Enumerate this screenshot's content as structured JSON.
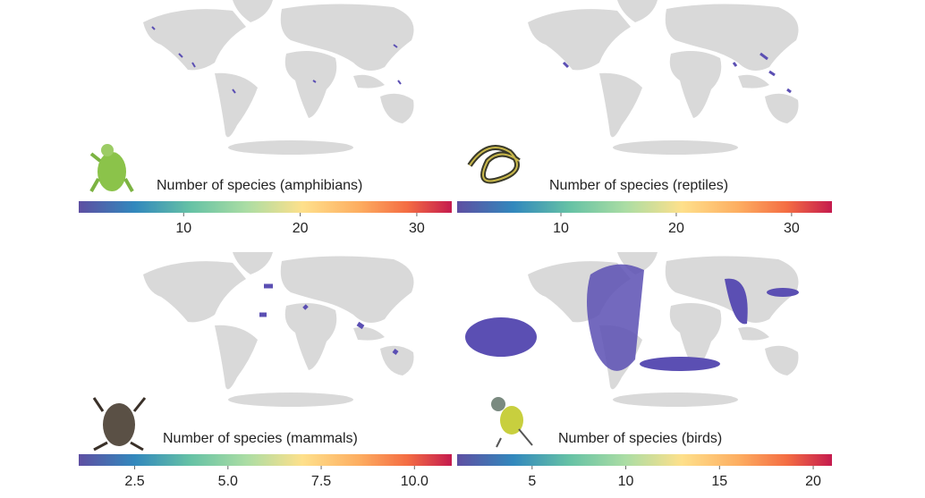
{
  "panels": [
    {
      "label": "Number of species (amphibians)",
      "clim": [
        1,
        33
      ],
      "ticks": [
        10,
        20,
        30
      ]
    },
    {
      "label": "Number of species (reptiles)",
      "clim": [
        1,
        33.5
      ],
      "ticks": [
        10,
        20,
        30
      ]
    },
    {
      "label": "Number of species (mammals)",
      "clim": [
        1,
        11
      ],
      "ticks": [
        2.5,
        {
          "value": 5,
          "label": "5.0"
        },
        7.5,
        {
          "value": 10,
          "label": "10.0"
        }
      ]
    },
    {
      "label": "Number of species (birds)",
      "clim": [
        1,
        21
      ],
      "ticks": [
        5,
        10,
        15,
        20
      ]
    }
  ]
}
